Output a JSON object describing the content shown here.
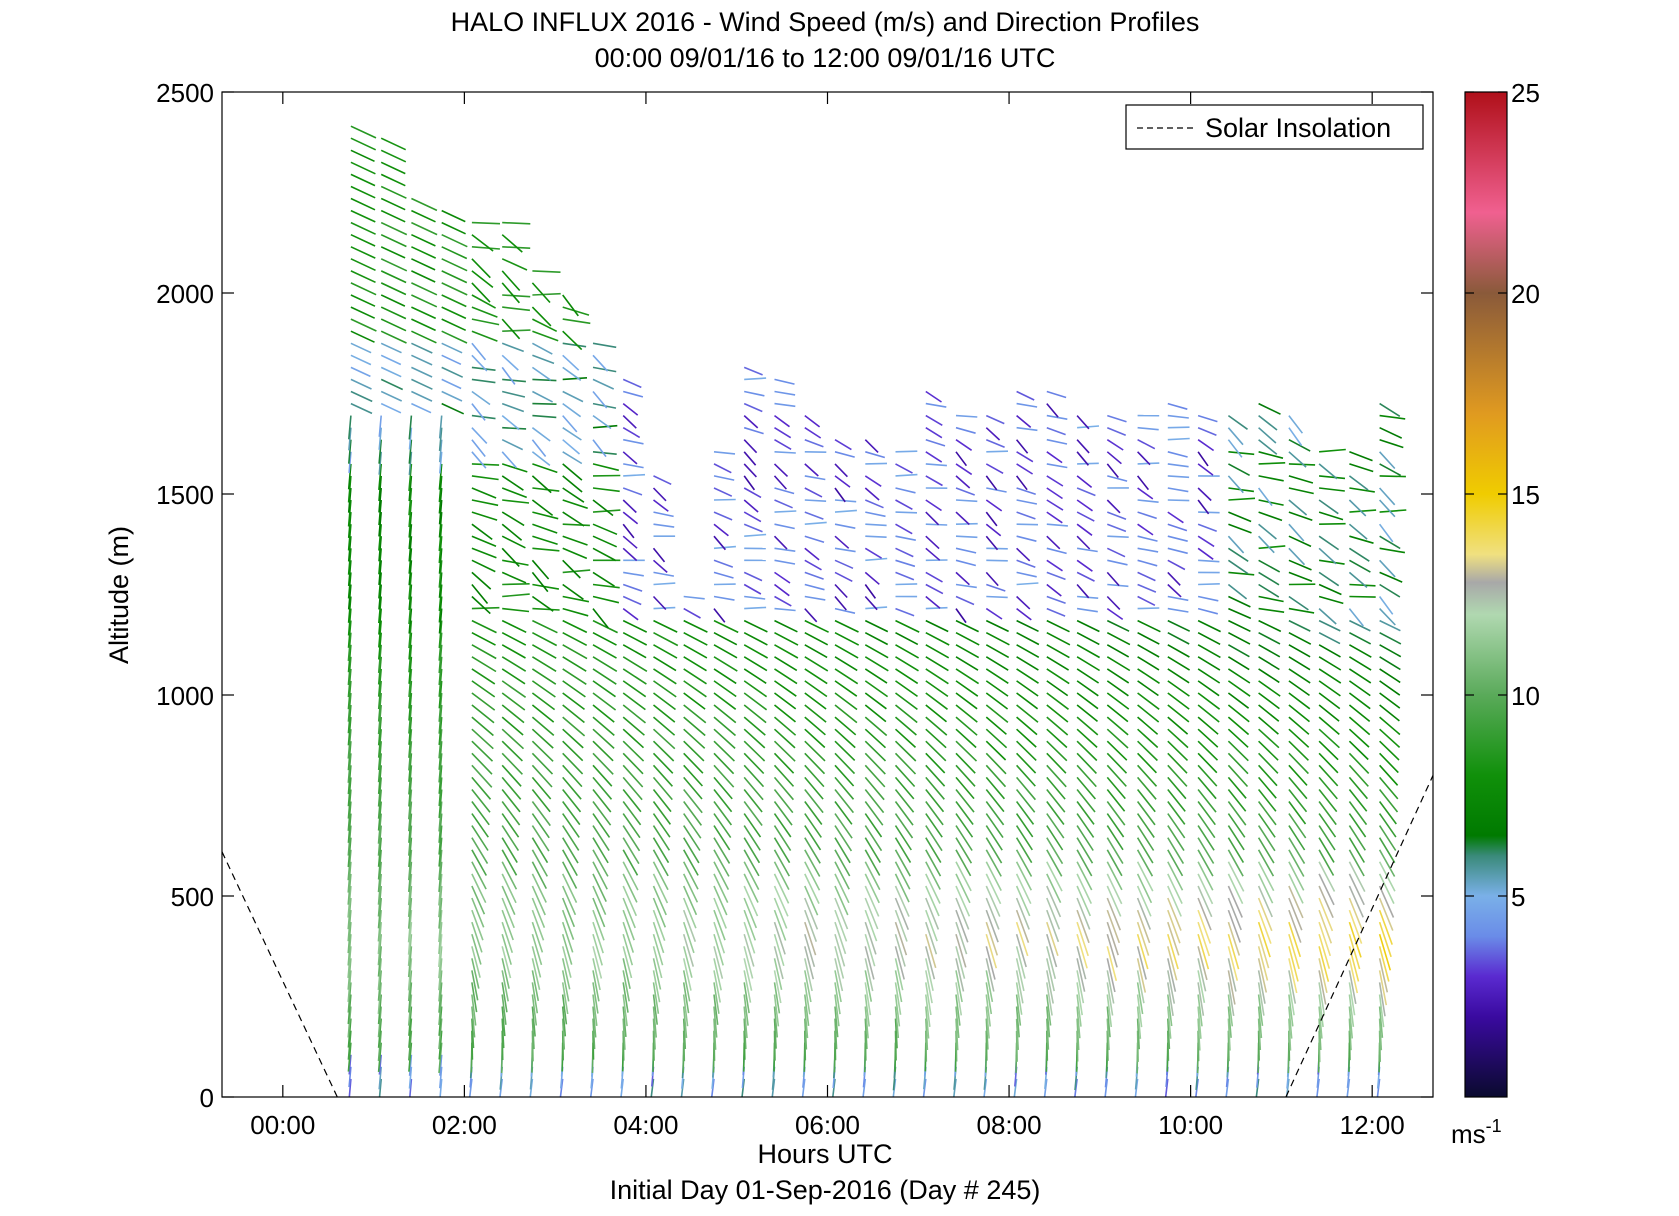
{
  "chart_data": {
    "type": "quiver",
    "title": "HALO INFLUX 2016 - Wind Speed (m/s) and Direction Profiles",
    "subtitle": "00:00 09/01/16 to 12:00 09/01/16  UTC",
    "xlabel": "Hours UTC",
    "xlabel2": "Initial Day 01-Sep-2016 (Day # 245)",
    "ylabel": "Altitude (m)",
    "xlim": [
      -0.67,
      12.67
    ],
    "ylim": [
      0,
      2500
    ],
    "x_ticks": [
      0,
      2,
      4,
      6,
      8,
      10,
      12
    ],
    "x_tick_labels": [
      "00:00",
      "02:00",
      "04:00",
      "06:00",
      "08:00",
      "10:00",
      "12:00"
    ],
    "y_ticks": [
      0,
      500,
      1000,
      1500,
      2000,
      2500
    ],
    "y_tick_labels": [
      "0",
      "500",
      "1000",
      "1500",
      "2000",
      "2500"
    ],
    "grid": false,
    "legend": {
      "position": "top-right",
      "entries": [
        {
          "label": "Solar Insolation",
          "style": "dashed",
          "color": "#000000"
        }
      ]
    },
    "colorbar": {
      "min": 0,
      "max": 25,
      "ticks": [
        5,
        10,
        15,
        20,
        25
      ],
      "tick_labels": [
        "5",
        "10",
        "15",
        "20",
        "25"
      ],
      "unit": "ms",
      "unit_exponent": "-1",
      "stops": [
        [
          0,
          "#0a0a2e"
        ],
        [
          2,
          "#3a0aa0"
        ],
        [
          3,
          "#5a2ad0"
        ],
        [
          4,
          "#6a8ce8"
        ],
        [
          5,
          "#7ab0e8"
        ],
        [
          6,
          "#3a8a7a"
        ],
        [
          6.5,
          "#007a00"
        ],
        [
          8,
          "#10900a"
        ],
        [
          10,
          "#5aaa5a"
        ],
        [
          12,
          "#b0d8b0"
        ],
        [
          12.8,
          "#a8a8a8"
        ],
        [
          13.5,
          "#f0e080"
        ],
        [
          15,
          "#f0cc00"
        ],
        [
          17,
          "#e09a20"
        ],
        [
          20,
          "#8a5a3a"
        ],
        [
          22,
          "#f06090"
        ],
        [
          25,
          "#b0101a"
        ]
      ]
    },
    "solar_insolation": {
      "x": [
        -0.67,
        0.6,
        11.05,
        12.67
      ],
      "y": [
        610,
        0,
        0,
        800
      ]
    },
    "profiles": {
      "start_hour": 0.75,
      "step_hours": 0.3333,
      "count": 35,
      "altitude_step_m": 30,
      "top_altitude_m": [
        2430,
        2400,
        2240,
        2220,
        2200,
        2180,
        2080,
        2000,
        1880,
        1800,
        1560,
        1260,
        1620,
        1830,
        1800,
        1700,
        1650,
        1650,
        1620,
        1760,
        1700,
        1700,
        1780,
        1760,
        1700,
        1700,
        1700,
        1750,
        1700,
        1700,
        1750,
        1700,
        1620,
        1620,
        1750
      ],
      "description": "Wind barbs every 30 m per profile; colour encodes speed (m/s), orientation encodes direction"
    }
  }
}
